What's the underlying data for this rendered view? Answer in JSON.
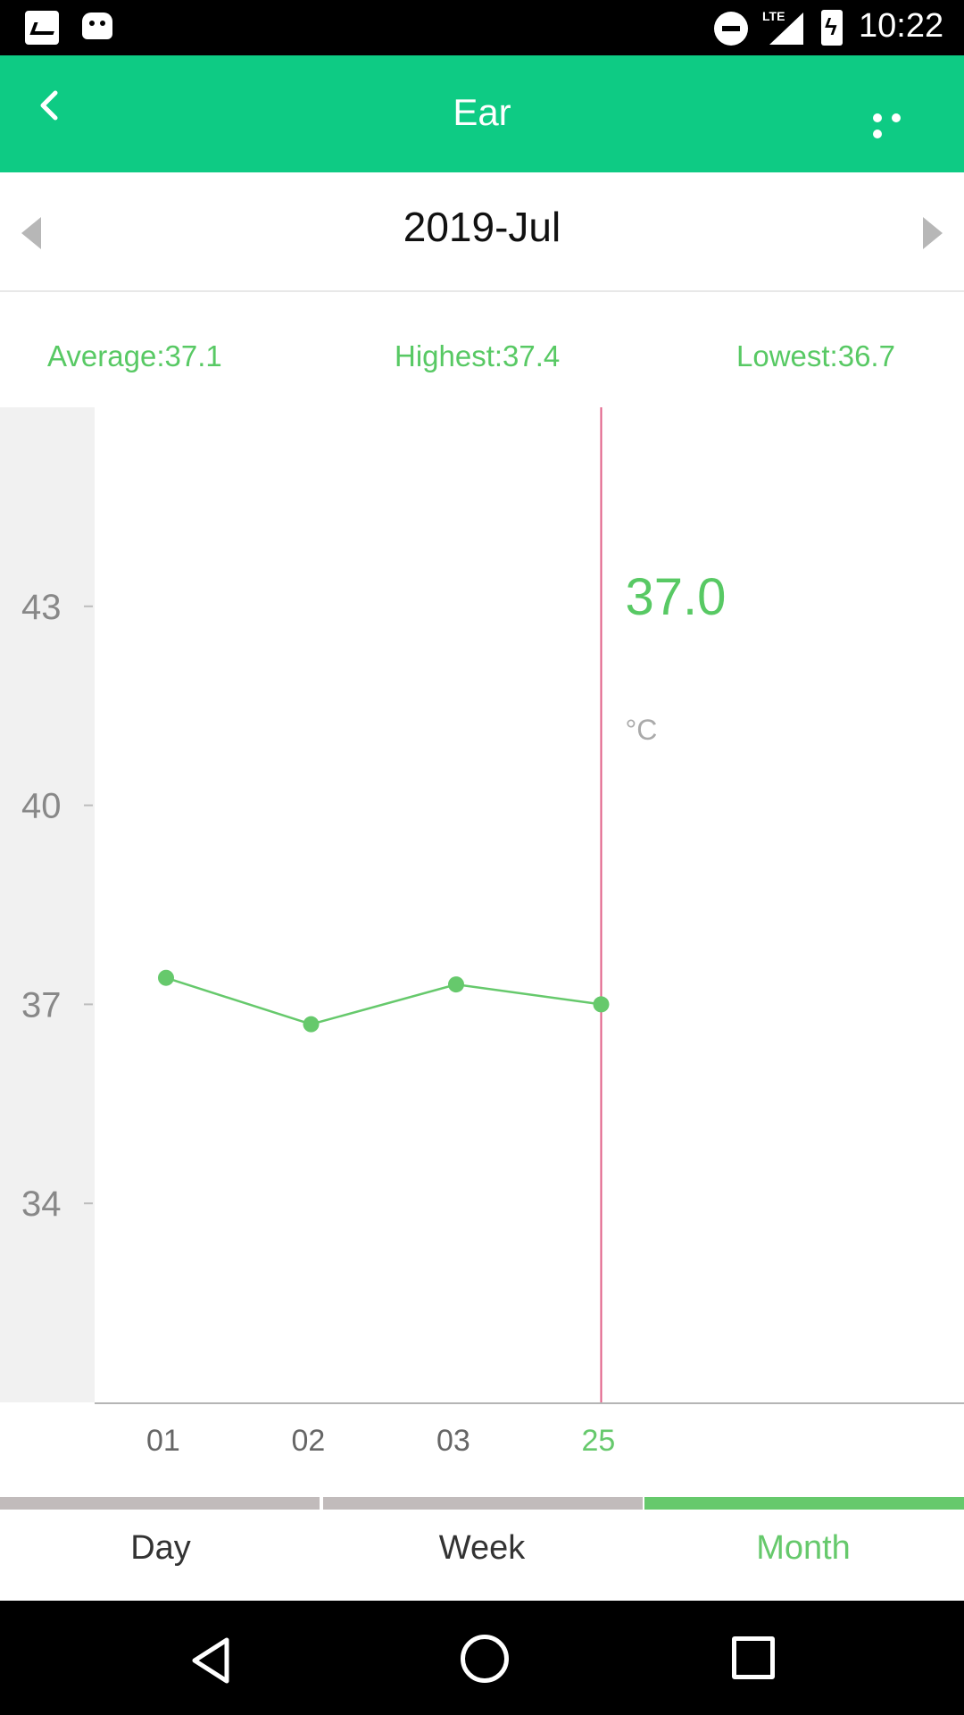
{
  "status_bar": {
    "time": "10:22",
    "network": "LTE",
    "left_icons": [
      "mail-icon",
      "android-icon"
    ],
    "right_icons": [
      "do-not-disturb-icon",
      "signal-icon",
      "battery-charging-icon"
    ]
  },
  "app_bar": {
    "title": "Ear",
    "back_icon": "chevron-left-icon",
    "menu_icon": "more-horizontal-icon",
    "background": "#0ecb84"
  },
  "month_selector": {
    "label": "2019-Jul",
    "prev_icon": "triangle-left-icon",
    "next_icon": "triangle-right-icon"
  },
  "stats": {
    "average": "Average:37.1",
    "highest": "Highest:37.4",
    "lowest": "Lowest:36.7",
    "color": "#58c964"
  },
  "chart_data": {
    "type": "line",
    "categories": [
      "01",
      "02",
      "03",
      "25"
    ],
    "values": [
      37.4,
      36.7,
      37.3,
      37.0
    ],
    "ylim": [
      31,
      46
    ],
    "yticks": [
      34,
      37,
      40,
      43
    ],
    "ytick_labels": [
      "34",
      "37",
      "40",
      "43"
    ],
    "selected_index": 3,
    "selected_value": "37.0",
    "unit": "°C",
    "line_color": "#66c96c",
    "cursor_color": "#e05d86",
    "title": "",
    "xlabel": "",
    "ylabel": ""
  },
  "tabs": {
    "items": [
      {
        "label": "Day",
        "active": false
      },
      {
        "label": "Week",
        "active": false
      },
      {
        "label": "Month",
        "active": true
      }
    ],
    "active_color": "#66c96c",
    "inactive_color": "#c1bbbb"
  },
  "nav_bar": {
    "back_icon": "nav-back-icon",
    "home_icon": "nav-home-icon",
    "recents_icon": "nav-recents-icon"
  }
}
